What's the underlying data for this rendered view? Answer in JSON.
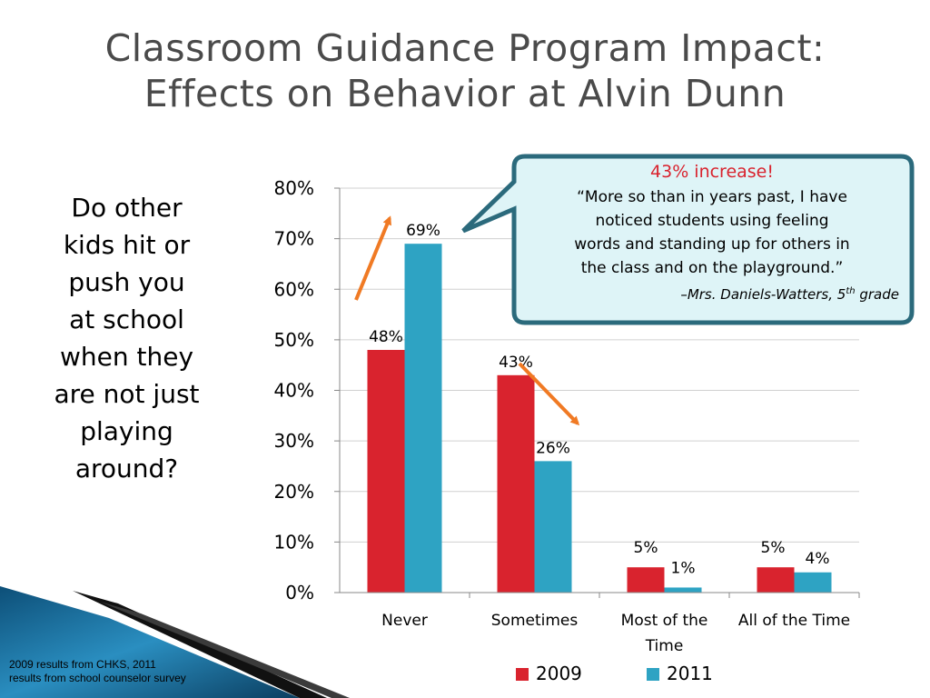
{
  "title": {
    "line1": "Classroom Guidance Program Impact:",
    "line2": "Effects on Behavior at Alvin Dunn"
  },
  "question": [
    "Do other",
    "kids hit or",
    "push you",
    "at school",
    "when they",
    "are not just",
    "playing",
    "around?"
  ],
  "callout": {
    "headline": "43% increase!",
    "quote_lines": [
      "“More so than in years past, I have",
      "noticed students using feeling",
      "words and standing up for others in",
      "the class and on the playground.”"
    ],
    "attribution": "–Mrs. Daniels-Watters, 5",
    "attribution_sup": "th",
    "attribution_end": " grade"
  },
  "source": [
    "2009 results from CHKS, 2011",
    "results from school counselor survey"
  ],
  "chart_data": {
    "type": "bar",
    "categories": [
      "Never",
      "Sometimes",
      "Most of the Time",
      "All of the Time"
    ],
    "category_label_lines": [
      [
        "Never"
      ],
      [
        "Sometimes"
      ],
      [
        "Most of the",
        "Time"
      ],
      [
        "All of the Time"
      ]
    ],
    "series": [
      {
        "name": "2009",
        "values": [
          48,
          43,
          5,
          5
        ],
        "labels": [
          "48%",
          "43%",
          "5%",
          "5%"
        ],
        "color": "#d9232e"
      },
      {
        "name": "2011",
        "values": [
          69,
          26,
          1,
          4
        ],
        "labels": [
          "69%",
          "26%",
          "1%",
          "4%"
        ],
        "color": "#2ea3c3"
      }
    ],
    "ylim": [
      0,
      80
    ],
    "yticks": [
      "0%",
      "10%",
      "20%",
      "30%",
      "40%",
      "50%",
      "60%",
      "70%",
      "80%"
    ],
    "grid": true,
    "legend": "bottom"
  },
  "colors": {
    "title": "#4a4a4a",
    "arrow": "#f07a24",
    "callout_fill": "#def4f7",
    "callout_border": "#2b6a7c"
  }
}
